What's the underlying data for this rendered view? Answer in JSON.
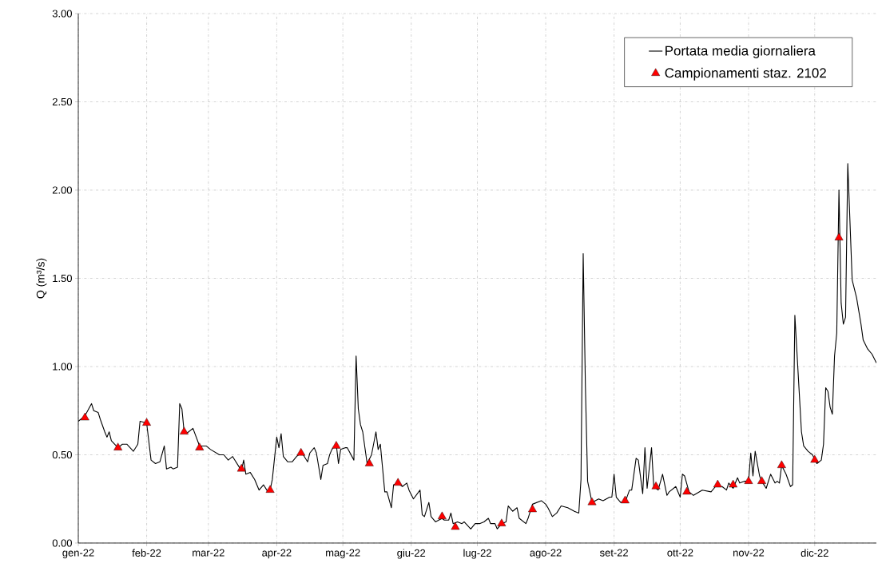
{
  "chart_data": {
    "type": "line",
    "ylabel": "Q (m³/s)",
    "xlim": [
      "2022-01-01",
      "2022-12-29"
    ],
    "ylim": [
      0,
      3
    ],
    "xticks": [
      {
        "value": "2022-01-01",
        "label": "gen-22"
      },
      {
        "value": "2022-02-01",
        "label": "feb-22"
      },
      {
        "value": "2022-03-01",
        "label": "mar-22"
      },
      {
        "value": "2022-04-01",
        "label": "apr-22"
      },
      {
        "value": "2022-05-01",
        "label": "mag-22"
      },
      {
        "value": "2022-06-01",
        "label": "giu-22"
      },
      {
        "value": "2022-07-01",
        "label": "lug-22"
      },
      {
        "value": "2022-08-01",
        "label": "ago-22"
      },
      {
        "value": "2022-09-01",
        "label": "set-22"
      },
      {
        "value": "2022-10-01",
        "label": "ott-22"
      },
      {
        "value": "2022-11-01",
        "label": "nov-22"
      },
      {
        "value": "2022-12-01",
        "label": "dic-22"
      }
    ],
    "yticks": [
      {
        "value": 0,
        "label": "0.00"
      },
      {
        "value": 0.5,
        "label": "0.50"
      },
      {
        "value": 1,
        "label": "1.00"
      },
      {
        "value": 1.5,
        "label": "1.50"
      },
      {
        "value": 2,
        "label": "2.00"
      },
      {
        "value": 2.5,
        "label": "2.50"
      },
      {
        "value": 3,
        "label": "3.00"
      }
    ],
    "grid": true,
    "legend": "top right",
    "series": [
      {
        "name": "Portata media giornaliera",
        "color": "#000000",
        "marker": "none",
        "line_style": "solid",
        "x": [
          "2022-01-01",
          "2022-01-04",
          "2022-01-07",
          "2022-01-08",
          "2022-01-10",
          "2022-01-11",
          "2022-01-13",
          "2022-01-14",
          "2022-01-15",
          "2022-01-16",
          "2022-01-19",
          "2022-01-21",
          "2022-01-23",
          "2022-01-26",
          "2022-01-28",
          "2022-01-29",
          "2022-02-01",
          "2022-02-03",
          "2022-02-05",
          "2022-02-07",
          "2022-02-09",
          "2022-02-10",
          "2022-02-12",
          "2022-02-13",
          "2022-02-15",
          "2022-02-16",
          "2022-02-17",
          "2022-02-18",
          "2022-02-19",
          "2022-02-22",
          "2022-02-25",
          "2022-02-28",
          "2022-03-02",
          "2022-03-06",
          "2022-03-08",
          "2022-03-10",
          "2022-03-12",
          "2022-03-14",
          "2022-03-16",
          "2022-03-17",
          "2022-03-18",
          "2022-03-20",
          "2022-03-22",
          "2022-03-24",
          "2022-03-26",
          "2022-03-28",
          "2022-03-29",
          "2022-03-30",
          "2022-04-01",
          "2022-04-02",
          "2022-04-03",
          "2022-04-04",
          "2022-04-06",
          "2022-04-08",
          "2022-04-10",
          "2022-04-12",
          "2022-04-13",
          "2022-04-15",
          "2022-04-16",
          "2022-04-18",
          "2022-04-19",
          "2022-04-21",
          "2022-04-22",
          "2022-04-24",
          "2022-04-25",
          "2022-04-26",
          "2022-04-28",
          "2022-04-29",
          "2022-04-30",
          "2022-05-02",
          "2022-05-03",
          "2022-05-06",
          "2022-05-07",
          "2022-05-08",
          "2022-05-09",
          "2022-05-10",
          "2022-05-12",
          "2022-05-14",
          "2022-05-16",
          "2022-05-17",
          "2022-05-18",
          "2022-05-20",
          "2022-05-21",
          "2022-05-23",
          "2022-05-24",
          "2022-05-26",
          "2022-05-28",
          "2022-05-30",
          "2022-05-31",
          "2022-06-02",
          "2022-06-05",
          "2022-06-06",
          "2022-06-07",
          "2022-06-09",
          "2022-06-10",
          "2022-06-12",
          "2022-06-15",
          "2022-06-16",
          "2022-06-18",
          "2022-06-19",
          "2022-06-20",
          "2022-06-22",
          "2022-06-24",
          "2022-06-25",
          "2022-06-28",
          "2022-06-30",
          "2022-07-02",
          "2022-07-04",
          "2022-07-06",
          "2022-07-07",
          "2022-07-09",
          "2022-07-10",
          "2022-07-12",
          "2022-07-14",
          "2022-07-15",
          "2022-07-17",
          "2022-07-19",
          "2022-07-20",
          "2022-07-23",
          "2022-07-24",
          "2022-07-26",
          "2022-07-28",
          "2022-07-30",
          "2022-08-01",
          "2022-08-02",
          "2022-08-04",
          "2022-08-06",
          "2022-08-08",
          "2022-08-11",
          "2022-08-14",
          "2022-08-16",
          "2022-08-17",
          "2022-08-18",
          "2022-08-19",
          "2022-08-20",
          "2022-08-22",
          "2022-08-25",
          "2022-08-27",
          "2022-08-30",
          "2022-08-31",
          "2022-09-01",
          "2022-09-02",
          "2022-09-04",
          "2022-09-06",
          "2022-09-08",
          "2022-09-09",
          "2022-09-11",
          "2022-09-12",
          "2022-09-14",
          "2022-09-15",
          "2022-09-16",
          "2022-09-18",
          "2022-09-19",
          "2022-09-21",
          "2022-09-23",
          "2022-09-25",
          "2022-09-26",
          "2022-09-29",
          "2022-10-01",
          "2022-10-02",
          "2022-10-03",
          "2022-10-05",
          "2022-10-07",
          "2022-10-11",
          "2022-10-15",
          "2022-10-17",
          "2022-10-20",
          "2022-10-22",
          "2022-10-23",
          "2022-10-25",
          "2022-10-27",
          "2022-10-28",
          "2022-10-30",
          "2022-11-01",
          "2022-11-02",
          "2022-11-03",
          "2022-11-04",
          "2022-11-06",
          "2022-11-07",
          "2022-11-09",
          "2022-11-11",
          "2022-11-13",
          "2022-11-14",
          "2022-11-15",
          "2022-11-16",
          "2022-11-18",
          "2022-11-20",
          "2022-11-21",
          "2022-11-22",
          "2022-11-25",
          "2022-11-26",
          "2022-11-28",
          "2022-11-30",
          "2022-12-02",
          "2022-12-04",
          "2022-12-05",
          "2022-12-06",
          "2022-12-07",
          "2022-12-08",
          "2022-12-09",
          "2022-12-10",
          "2022-12-11",
          "2022-12-12",
          "2022-12-13",
          "2022-12-14",
          "2022-12-15",
          "2022-12-16",
          "2022-12-18",
          "2022-12-20",
          "2022-12-22",
          "2022-12-23",
          "2022-12-25",
          "2022-12-27",
          "2022-12-29"
        ],
        "values": [
          0.69,
          0.72,
          0.79,
          0.75,
          0.74,
          0.7,
          0.63,
          0.6,
          0.63,
          0.58,
          0.54,
          0.56,
          0.56,
          0.52,
          0.56,
          0.69,
          0.68,
          0.47,
          0.45,
          0.46,
          0.55,
          0.42,
          0.43,
          0.42,
          0.43,
          0.79,
          0.76,
          0.63,
          0.62,
          0.65,
          0.55,
          0.55,
          0.53,
          0.5,
          0.5,
          0.47,
          0.49,
          0.45,
          0.41,
          0.47,
          0.39,
          0.4,
          0.36,
          0.3,
          0.33,
          0.29,
          0.3,
          0.36,
          0.6,
          0.54,
          0.62,
          0.49,
          0.46,
          0.46,
          0.49,
          0.51,
          0.5,
          0.46,
          0.51,
          0.54,
          0.51,
          0.36,
          0.44,
          0.45,
          0.5,
          0.53,
          0.56,
          0.45,
          0.53,
          0.54,
          0.54,
          0.47,
          1.06,
          0.76,
          0.67,
          0.63,
          0.45,
          0.5,
          0.63,
          0.53,
          0.56,
          0.29,
          0.29,
          0.2,
          0.33,
          0.34,
          0.32,
          0.34,
          0.3,
          0.25,
          0.3,
          0.16,
          0.15,
          0.23,
          0.15,
          0.12,
          0.14,
          0.13,
          0.13,
          0.17,
          0.11,
          0.12,
          0.11,
          0.12,
          0.08,
          0.11,
          0.11,
          0.12,
          0.14,
          0.11,
          0.11,
          0.08,
          0.11,
          0.12,
          0.21,
          0.18,
          0.2,
          0.14,
          0.11,
          0.14,
          0.22,
          0.23,
          0.24,
          0.22,
          0.2,
          0.15,
          0.17,
          0.21,
          0.2,
          0.18,
          0.17,
          0.36,
          1.64,
          0.89,
          0.35,
          0.23,
          0.25,
          0.24,
          0.26,
          0.26,
          0.39,
          0.26,
          0.23,
          0.23,
          0.3,
          0.3,
          0.48,
          0.47,
          0.28,
          0.54,
          0.31,
          0.54,
          0.32,
          0.3,
          0.39,
          0.27,
          0.29,
          0.32,
          0.26,
          0.39,
          0.38,
          0.29,
          0.27,
          0.3,
          0.29,
          0.32,
          0.32,
          0.3,
          0.34,
          0.31,
          0.37,
          0.34,
          0.35,
          0.35,
          0.51,
          0.38,
          0.52,
          0.38,
          0.35,
          0.31,
          0.39,
          0.34,
          0.35,
          0.34,
          0.44,
          0.39,
          0.32,
          0.33,
          1.29,
          0.63,
          0.55,
          0.52,
          0.5,
          0.45,
          0.47,
          0.56,
          0.88,
          0.86,
          0.77,
          0.73,
          1.06,
          1.19,
          2.0,
          1.36,
          1.24,
          1.28,
          2.15,
          1.49,
          1.39,
          1.24,
          1.15,
          1.1,
          1.07,
          1.02
        ]
      },
      {
        "name": "Campionamenti staz. 2102",
        "type": "scatter",
        "color": "#ff0000",
        "marker": "triangle",
        "x": [
          "2022-01-04",
          "2022-01-19",
          "2022-02-01",
          "2022-02-18",
          "2022-02-25",
          "2022-03-16",
          "2022-03-29",
          "2022-04-12",
          "2022-04-28",
          "2022-05-13",
          "2022-05-26",
          "2022-06-15",
          "2022-06-21",
          "2022-07-12",
          "2022-07-26",
          "2022-08-22",
          "2022-09-06",
          "2022-09-20",
          "2022-10-04",
          "2022-10-18",
          "2022-10-25",
          "2022-11-01",
          "2022-11-07",
          "2022-11-16",
          "2022-12-01",
          "2022-12-12"
        ],
        "values": [
          0.71,
          0.54,
          0.68,
          0.63,
          0.54,
          0.42,
          0.3,
          0.51,
          0.55,
          0.45,
          0.34,
          0.15,
          0.09,
          0.11,
          0.19,
          0.23,
          0.24,
          0.32,
          0.29,
          0.33,
          0.33,
          0.35,
          0.35,
          0.44,
          0.47,
          1.73
        ]
      }
    ]
  }
}
